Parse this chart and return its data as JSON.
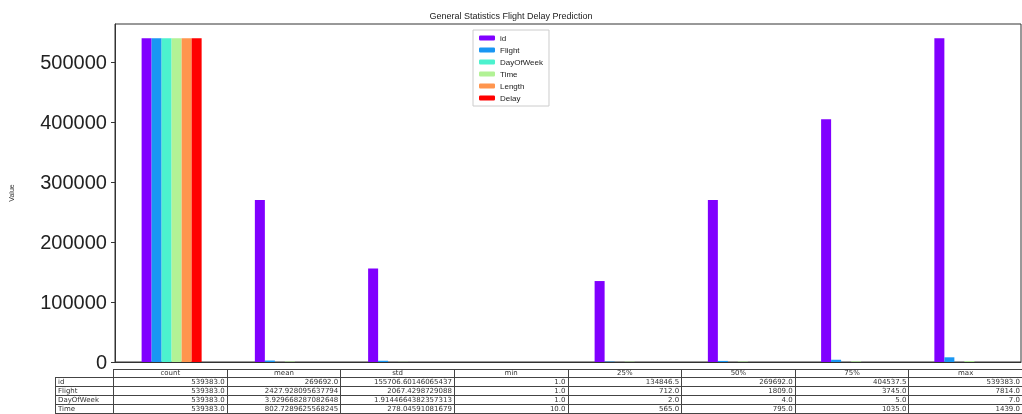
{
  "chart_data": {
    "type": "bar",
    "title": "General Statistics Flight Delay Prediction",
    "ylabel": "Value",
    "categories": [
      "count",
      "mean",
      "std",
      "min",
      "25%",
      "50%",
      "75%",
      "max"
    ],
    "ylim": [
      0,
      563000
    ],
    "yticks": [
      0,
      100000,
      200000,
      300000,
      400000,
      500000
    ],
    "grid": false,
    "legend": "top",
    "series": [
      {
        "name": "id",
        "color": "#8000ff",
        "values": [
          539383,
          269692,
          155706.60146065438,
          1,
          134846.5,
          269692,
          404537.5,
          539383
        ],
        "value_labels": [
          "539383.0",
          "269692.0",
          "155706.60146065437",
          "1.0",
          "134846.5",
          "269692.0",
          "404537.5",
          "539383.0"
        ]
      },
      {
        "name": "Flight",
        "color": "#1996f3",
        "values": [
          539383,
          2427.928095637794,
          2067.4298729088,
          1,
          712,
          1809,
          3745,
          7814
        ],
        "value_labels": [
          "539383.0",
          "2427.928095637794",
          "2067.4298729088",
          "1.0",
          "712.0",
          "1809.0",
          "3745.0",
          "7814.0"
        ]
      },
      {
        "name": "DayOfWeek",
        "color": "#4cf2ce",
        "values": [
          539383,
          3.929668287082648,
          1.9144664382357313,
          1,
          2,
          4,
          5,
          7
        ],
        "value_labels": [
          "539383.0",
          "3.929668287082648",
          "1.9144664382357313",
          "1.0",
          "2.0",
          "4.0",
          "5.0",
          "7.0"
        ]
      },
      {
        "name": "Time",
        "color": "#b2f295",
        "values": [
          539383,
          802.7289625568245,
          278.04591081679,
          10,
          565,
          795,
          1035,
          1439
        ],
        "value_labels": [
          "539383.0",
          "802.7289625568245",
          "278.04591081679",
          "10.0",
          "565.0",
          "795.0",
          "1035.0",
          "1439.0"
        ]
      },
      {
        "name": "Length",
        "color": "#ff954e",
        "values": [
          539383,
          null,
          null,
          null,
          null,
          null,
          null,
          null
        ]
      },
      {
        "name": "Delay",
        "color": "#ff0000",
        "values": [
          539383,
          null,
          null,
          null,
          null,
          null,
          null,
          null
        ]
      }
    ]
  }
}
